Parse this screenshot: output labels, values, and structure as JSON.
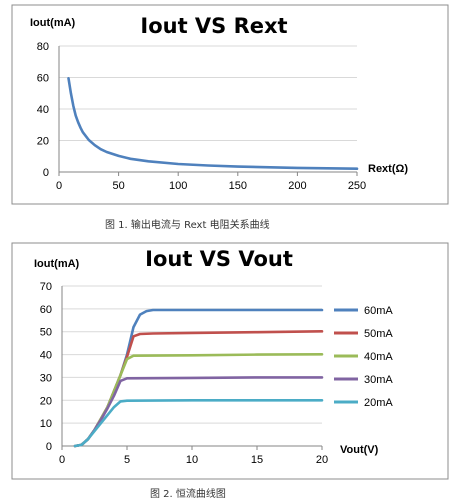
{
  "chart_data": [
    {
      "type": "line",
      "title": "Iout VS Rext",
      "ylabel": "Iout(mA)",
      "xlabel": "Rext(Ω)",
      "xlim": [
        0,
        250
      ],
      "ylim": [
        0,
        80
      ],
      "xticks": [
        "0",
        "50",
        "100",
        "150",
        "200",
        "250"
      ],
      "yticks": [
        "0",
        "20",
        "40",
        "60",
        "80"
      ],
      "grid": "horizontal",
      "series": [
        {
          "color": "#4f81bd",
          "x": [
            8,
            10,
            12,
            14,
            16,
            18,
            20,
            25,
            30,
            35,
            40,
            50,
            60,
            75,
            100,
            125,
            150,
            200,
            250
          ],
          "y": [
            59.5,
            50,
            42,
            35.8,
            31.6,
            28.1,
            25.3,
            20.3,
            17,
            14.5,
            12.7,
            10.2,
            8.4,
            6.8,
            5.1,
            4.1,
            3.4,
            2.6,
            2.1
          ]
        }
      ],
      "caption": "图 1.          输出电流与 Rext 电阻关系曲线"
    },
    {
      "type": "line",
      "title": "Iout VS Vout",
      "ylabel": "Iout(mA)",
      "xlabel": "Vout(V)",
      "xlim": [
        0,
        20
      ],
      "ylim": [
        0,
        70
      ],
      "xticks": [
        "0",
        "5",
        "10",
        "15",
        "20"
      ],
      "yticks": [
        "0",
        "10",
        "20",
        "30",
        "40",
        "50",
        "60",
        "70"
      ],
      "grid": "horizontal",
      "legend": "right",
      "series": [
        {
          "name": "60mA",
          "color": "#4f81bd",
          "x": [
            1,
            1.5,
            2,
            2.5,
            3,
            3.5,
            4,
            4.5,
            5,
            5.5,
            6,
            6.5,
            7,
            7.5,
            10,
            15,
            20
          ],
          "y": [
            0,
            0.5,
            3,
            7,
            12,
            17,
            24,
            31,
            40,
            52,
            57.5,
            59,
            59.5,
            59.5,
            59.5,
            59.5,
            59.5
          ]
        },
        {
          "name": "50mA",
          "color": "#c0504d",
          "x": [
            1,
            1.5,
            2,
            2.5,
            3,
            3.5,
            4,
            4.5,
            5,
            5.5,
            6,
            7,
            10,
            15,
            20
          ],
          "y": [
            0,
            0.5,
            3,
            7,
            12,
            17,
            24,
            31,
            39,
            48,
            49,
            49.2,
            49.5,
            49.8,
            50.2
          ]
        },
        {
          "name": "40mA",
          "color": "#9bbb59",
          "x": [
            1,
            1.5,
            2,
            2.5,
            3,
            3.5,
            4,
            4.5,
            5,
            5.5,
            10,
            15,
            20
          ],
          "y": [
            0,
            0.5,
            3,
            7,
            12,
            17,
            24,
            31,
            38,
            39.5,
            39.7,
            40,
            40.1
          ]
        },
        {
          "name": "30mA",
          "color": "#8064a2",
          "x": [
            1,
            1.5,
            2,
            2.5,
            3,
            3.5,
            4,
            4.5,
            5,
            10,
            15,
            20
          ],
          "y": [
            0,
            0.5,
            3,
            7,
            11.5,
            16.5,
            22,
            28.5,
            29.6,
            29.8,
            30,
            30
          ]
        },
        {
          "name": "20mA",
          "color": "#4bacc6",
          "x": [
            1,
            1.5,
            2,
            2.5,
            3,
            3.5,
            4,
            4.5,
            5,
            10,
            15,
            20
          ],
          "y": [
            0,
            0.5,
            3,
            6.5,
            10,
            13.5,
            17,
            19.5,
            19.8,
            20,
            20,
            20
          ]
        }
      ],
      "caption": "图 2.          恒流曲线图"
    }
  ]
}
